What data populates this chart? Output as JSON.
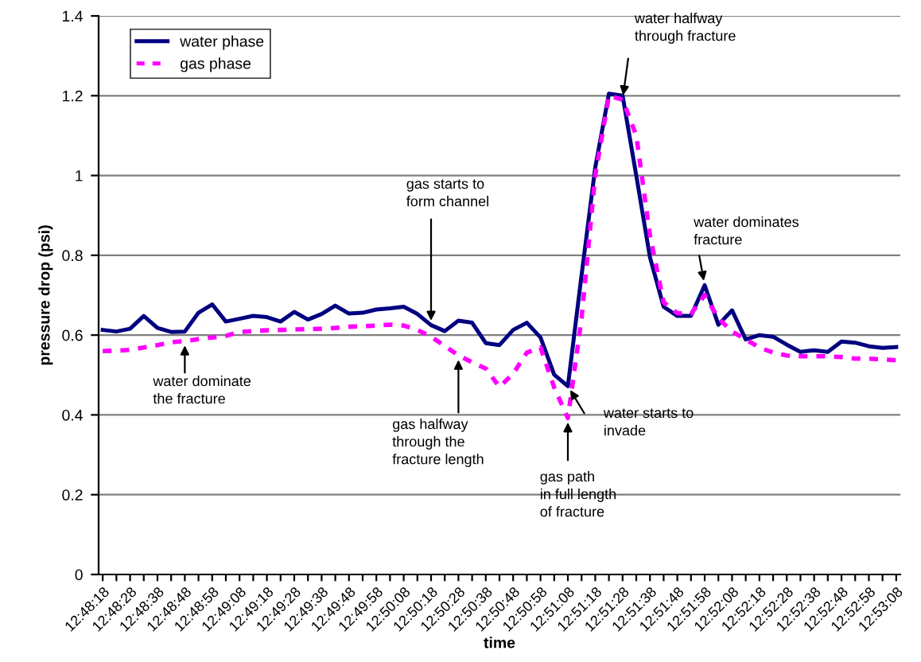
{
  "chart_data": {
    "type": "line",
    "xlabel": "time",
    "ylabel": "pressure drop (psi)",
    "categories": [
      "12:48:18",
      null,
      "12:48:28",
      null,
      "12:48:38",
      null,
      "12:48:48",
      null,
      "12:48:58",
      null,
      "12:49:08",
      null,
      "12:49:18",
      null,
      "12:49:28",
      null,
      "12:49:38",
      null,
      "12:49:48",
      null,
      "12:49:58",
      null,
      "12:50:08",
      null,
      "12:50:18",
      null,
      "12:50:28",
      null,
      "12:50:38",
      null,
      "12:50:48",
      null,
      "12:50:58",
      null,
      "12:51:08",
      null,
      "12:51:18",
      null,
      "12:51:28",
      null,
      "12:51:38",
      null,
      "12:51:48",
      null,
      "12:51:58",
      null,
      "12:52:08",
      null,
      "12:52:18",
      null,
      "12:52:28",
      null,
      "12:52:38",
      null,
      "12:52:48",
      null,
      "12:52:58",
      null,
      "12:53:08"
    ],
    "series": [
      {
        "name": "water phase",
        "color": "#000080",
        "line_style": "solid",
        "values": [
          0.613,
          0.609,
          0.616,
          0.648,
          0.618,
          0.608,
          0.609,
          0.656,
          0.677,
          0.634,
          0.641,
          0.648,
          0.645,
          0.634,
          0.658,
          0.639,
          0.653,
          0.674,
          0.654,
          0.656,
          0.664,
          0.667,
          0.671,
          0.653,
          0.625,
          0.61,
          0.636,
          0.631,
          0.58,
          0.575,
          0.613,
          0.631,
          0.594,
          0.501,
          0.472,
          0.75,
          1.02,
          1.205,
          1.2,
          1.0,
          0.795,
          0.671,
          0.648,
          0.648,
          0.725,
          0.626,
          0.662,
          0.589,
          0.6,
          0.596,
          0.576,
          0.558,
          0.562,
          0.558,
          0.584,
          0.581,
          0.572,
          0.568,
          0.57
        ]
      },
      {
        "name": "gas phase",
        "color": "#ff00ff",
        "line_style": "dashed",
        "values": [
          0.56,
          0.561,
          0.563,
          0.569,
          0.575,
          0.582,
          0.585,
          0.59,
          0.594,
          0.598,
          0.608,
          0.61,
          0.612,
          0.613,
          0.614,
          0.615,
          0.616,
          0.618,
          0.621,
          0.622,
          0.624,
          0.626,
          0.624,
          0.613,
          0.596,
          0.573,
          0.549,
          0.532,
          0.516,
          0.47,
          0.503,
          0.556,
          0.569,
          0.469,
          0.392,
          0.642,
          1.0,
          1.2,
          1.19,
          1.1,
          0.85,
          0.682,
          0.655,
          0.653,
          0.7,
          0.642,
          0.609,
          0.589,
          0.569,
          0.556,
          0.549,
          0.547,
          0.547,
          0.547,
          0.545,
          0.541,
          0.541,
          0.539,
          0.537
        ]
      }
    ],
    "ylim": [
      0,
      1.4
    ],
    "yticks": [
      0,
      0.2,
      0.4,
      0.6,
      0.8,
      1,
      1.2,
      1.4
    ],
    "grid": "y",
    "legend": "top left",
    "marker": "none",
    "annotations": [
      {
        "text": "gas starts to\nform channel",
        "x": "12:50:18",
        "y": 0.625
      },
      {
        "text": "water dominate\nthe fracture",
        "x": "12:48:48",
        "y": 0.585
      },
      {
        "text": "gas halfway\nthrough the\nfracture length",
        "x": "12:50:28",
        "y": 0.549
      },
      {
        "text": "gas path\nin full length\nof fracture",
        "x": "12:51:08",
        "y": 0.392
      },
      {
        "text": "water starts to\ninvade",
        "x": "12:51:08",
        "y": 0.472
      },
      {
        "text": "water halfway\nthrough fracture",
        "x": "12:51:28",
        "y": 1.19
      },
      {
        "text": "water dominates\nfracture",
        "x": "12:51:58",
        "y": 0.725
      }
    ]
  }
}
